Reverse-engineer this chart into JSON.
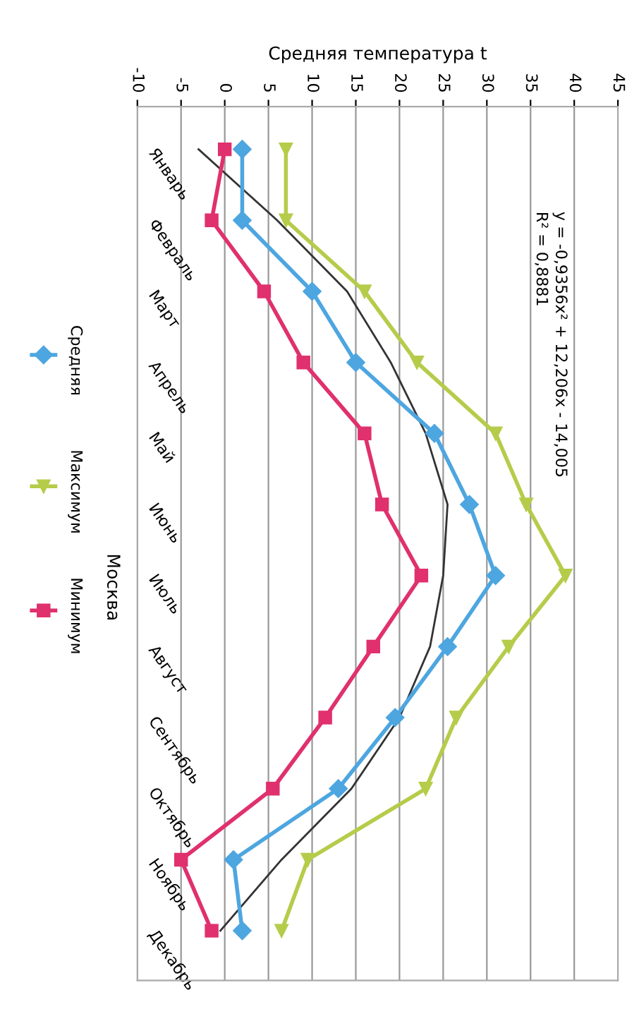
{
  "chart_data": {
    "type": "line",
    "orientation": "horizontal",
    "xlabel": "Средняя температура t",
    "ylabel": "Москва",
    "categories": [
      "Январь",
      "Февраль",
      "Март",
      "Апрель",
      "Май",
      "Июнь",
      "Июль",
      "Август",
      "Сентябрь",
      "Октябрь",
      "Ноябрь",
      "Декабрь"
    ],
    "series": [
      {
        "name": "Средняя",
        "color": "#4da6e0",
        "marker": "diamond",
        "values": [
          2,
          2,
          10,
          15,
          24,
          28,
          31,
          25.5,
          19.5,
          13,
          1,
          2
        ]
      },
      {
        "name": "Максимум",
        "color": "#b5cc4a",
        "marker": "triangle",
        "values": [
          7,
          7,
          16,
          22,
          31,
          34.5,
          39,
          32.5,
          26.5,
          23,
          9.5,
          6.5
        ]
      },
      {
        "name": "Минимум",
        "color": "#e0306e",
        "marker": "square",
        "values": [
          0,
          -1.5,
          4.5,
          9,
          16,
          18,
          22.5,
          17,
          11.5,
          5.5,
          -5,
          -1.5
        ]
      },
      {
        "color": "#333333",
        "marker": "none",
        "values": [
          -3,
          6,
          14,
          19,
          23,
          25.5,
          25,
          23.5,
          20,
          14.5,
          6.5,
          -0.5
        ]
      }
    ],
    "xlim": [
      -10,
      45
    ],
    "xticks": [
      -10,
      -5,
      0,
      5,
      10,
      15,
      20,
      25,
      30,
      35,
      40,
      45
    ],
    "grid": "x",
    "legend": "left",
    "annotations": [
      "y = -0,9356x² + 12,206x - 14,005",
      "R² = 0,8881"
    ]
  }
}
